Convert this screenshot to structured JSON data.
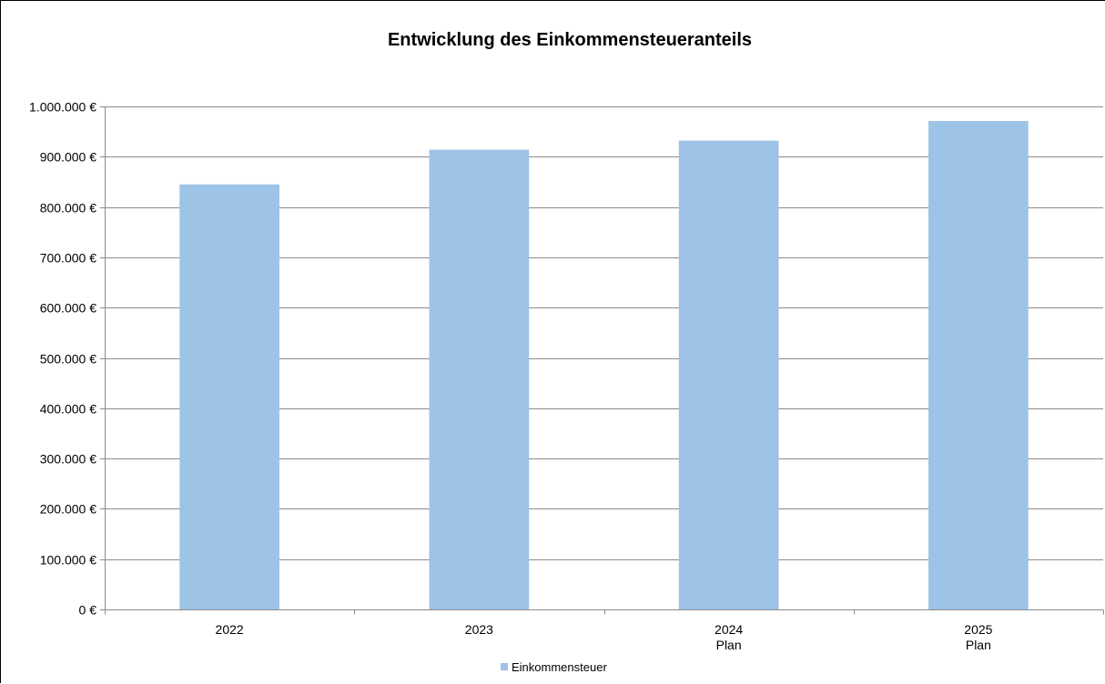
{
  "chart_data": {
    "type": "bar",
    "title": "Entwicklung des Einkommensteueranteils",
    "categories": [
      [
        "2022"
      ],
      [
        "2023"
      ],
      [
        "2024",
        "Plan"
      ],
      [
        "2025",
        "Plan"
      ]
    ],
    "series": [
      {
        "name": "Einkommensteuer",
        "values": [
          845000,
          914000,
          932000,
          971000
        ],
        "color": "#9DC3E6"
      }
    ],
    "ylim": [
      0,
      1000000
    ],
    "yticks": [
      0,
      100000,
      200000,
      300000,
      400000,
      500000,
      600000,
      700000,
      800000,
      900000,
      1000000
    ],
    "ytick_labels": [
      "0 €",
      "100.000 €",
      "200.000 €",
      "300.000 €",
      "400.000 €",
      "500.000 €",
      "600.000 €",
      "700.000 €",
      "800.000 €",
      "900.000 €",
      "1.000.000 €"
    ],
    "grid": true,
    "legend_position": "bottom",
    "gridline_color": "#8C8C8C"
  }
}
